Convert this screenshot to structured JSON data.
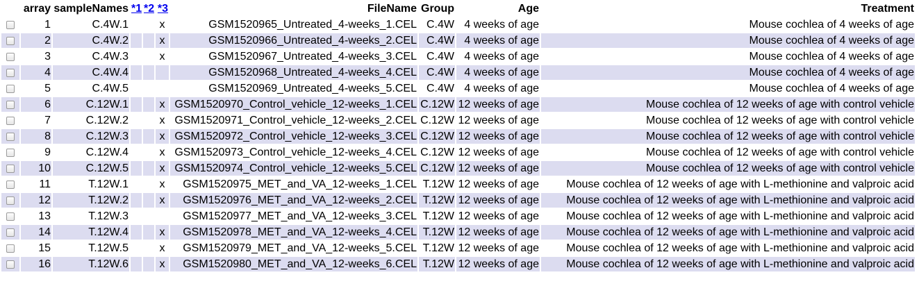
{
  "table": {
    "headers": {
      "array": "array",
      "sampleNames": "sampleNames",
      "m1": "*1",
      "m2": "*2",
      "m3": "*3",
      "fileName": "FileName",
      "group": "Group",
      "age": "Age",
      "treatment": "Treatment"
    },
    "rows": [
      {
        "array": "1",
        "sampleName": "C.4W.1",
        "m1": "",
        "m2": "",
        "m3": "x",
        "fileName": "GSM1520965_Untreated_4-weeks_1.CEL",
        "group": "C.4W",
        "age": "4 weeks of age",
        "treatment": "Mouse cochlea of 4 weeks of age"
      },
      {
        "array": "2",
        "sampleName": "C.4W.2",
        "m1": "",
        "m2": "",
        "m3": "x",
        "fileName": "GSM1520966_Untreated_4-weeks_2.CEL",
        "group": "C.4W",
        "age": "4 weeks of age",
        "treatment": "Mouse cochlea of 4 weeks of age"
      },
      {
        "array": "3",
        "sampleName": "C.4W.3",
        "m1": "",
        "m2": "",
        "m3": "x",
        "fileName": "GSM1520967_Untreated_4-weeks_3.CEL",
        "group": "C.4W",
        "age": "4 weeks of age",
        "treatment": "Mouse cochlea of 4 weeks of age"
      },
      {
        "array": "4",
        "sampleName": "C.4W.4",
        "m1": "",
        "m2": "",
        "m3": "",
        "fileName": "GSM1520968_Untreated_4-weeks_4.CEL",
        "group": "C.4W",
        "age": "4 weeks of age",
        "treatment": "Mouse cochlea of 4 weeks of age"
      },
      {
        "array": "5",
        "sampleName": "C.4W.5",
        "m1": "",
        "m2": "",
        "m3": "",
        "fileName": "GSM1520969_Untreated_4-weeks_5.CEL",
        "group": "C.4W",
        "age": "4 weeks of age",
        "treatment": "Mouse cochlea of 4 weeks of age"
      },
      {
        "array": "6",
        "sampleName": "C.12W.1",
        "m1": "",
        "m2": "",
        "m3": "x",
        "fileName": "GSM1520970_Control_vehicle_12-weeks_1.CEL",
        "group": "C.12W",
        "age": "12 weeks of age",
        "treatment": "Mouse cochlea of 12 weeks of age with control vehicle"
      },
      {
        "array": "7",
        "sampleName": "C.12W.2",
        "m1": "",
        "m2": "",
        "m3": "x",
        "fileName": "GSM1520971_Control_vehicle_12-weeks_2.CEL",
        "group": "C.12W",
        "age": "12 weeks of age",
        "treatment": "Mouse cochlea of 12 weeks of age with control vehicle"
      },
      {
        "array": "8",
        "sampleName": "C.12W.3",
        "m1": "",
        "m2": "",
        "m3": "x",
        "fileName": "GSM1520972_Control_vehicle_12-weeks_3.CEL",
        "group": "C.12W",
        "age": "12 weeks of age",
        "treatment": "Mouse cochlea of 12 weeks of age with control vehicle"
      },
      {
        "array": "9",
        "sampleName": "C.12W.4",
        "m1": "",
        "m2": "",
        "m3": "x",
        "fileName": "GSM1520973_Control_vehicle_12-weeks_4.CEL",
        "group": "C.12W",
        "age": "12 weeks of age",
        "treatment": "Mouse cochlea of 12 weeks of age with control vehicle"
      },
      {
        "array": "10",
        "sampleName": "C.12W.5",
        "m1": "",
        "m2": "",
        "m3": "x",
        "fileName": "GSM1520974_Control_vehicle_12-weeks_5.CEL",
        "group": "C.12W",
        "age": "12 weeks of age",
        "treatment": "Mouse cochlea of 12 weeks of age with control vehicle"
      },
      {
        "array": "11",
        "sampleName": "T.12W.1",
        "m1": "",
        "m2": "",
        "m3": "x",
        "fileName": "GSM1520975_MET_and_VA_12-weeks_1.CEL",
        "group": "T.12W",
        "age": "12 weeks of age",
        "treatment": "Mouse cochlea of 12 weeks of age with L-methionine and valproic acid"
      },
      {
        "array": "12",
        "sampleName": "T.12W.2",
        "m1": "",
        "m2": "",
        "m3": "x",
        "fileName": "GSM1520976_MET_and_VA_12-weeks_2.CEL",
        "group": "T.12W",
        "age": "12 weeks of age",
        "treatment": "Mouse cochlea of 12 weeks of age with L-methionine and valproic acid"
      },
      {
        "array": "13",
        "sampleName": "T.12W.3",
        "m1": "",
        "m2": "",
        "m3": "",
        "fileName": "GSM1520977_MET_and_VA_12-weeks_3.CEL",
        "group": "T.12W",
        "age": "12 weeks of age",
        "treatment": "Mouse cochlea of 12 weeks of age with L-methionine and valproic acid"
      },
      {
        "array": "14",
        "sampleName": "T.12W.4",
        "m1": "",
        "m2": "",
        "m3": "x",
        "fileName": "GSM1520978_MET_and_VA_12-weeks_4.CEL",
        "group": "T.12W",
        "age": "12 weeks of age",
        "treatment": "Mouse cochlea of 12 weeks of age with L-methionine and valproic acid"
      },
      {
        "array": "15",
        "sampleName": "T.12W.5",
        "m1": "",
        "m2": "",
        "m3": "x",
        "fileName": "GSM1520979_MET_and_VA_12-weeks_5.CEL",
        "group": "T.12W",
        "age": "12 weeks of age",
        "treatment": "Mouse cochlea of 12 weeks of age with L-methionine and valproic acid"
      },
      {
        "array": "16",
        "sampleName": "T.12W.6",
        "m1": "",
        "m2": "",
        "m3": "x",
        "fileName": "GSM1520980_MET_and_VA_12-weeks_6.CEL",
        "group": "T.12W",
        "age": "12 weeks of age",
        "treatment": "Mouse cochlea of 12 weeks of age with L-methionine and valproic acid"
      }
    ]
  },
  "colors": {
    "alt_row": "#dcdcf0",
    "link": "#0000ee"
  }
}
